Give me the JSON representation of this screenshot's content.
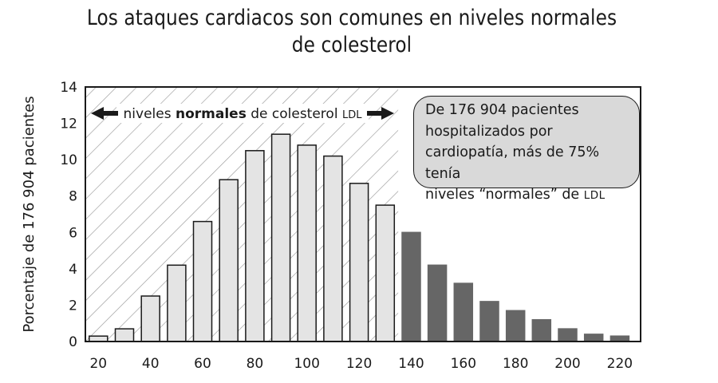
{
  "chart_data": {
    "type": "bar",
    "title": [
      "Los ataques cardiacos son comunes en niveles normales",
      "de colesterol"
    ],
    "ylabel": "Porcentaje de 176 904 pacientes",
    "xlabel": "",
    "ylim": [
      0,
      14
    ],
    "yticks": [
      0,
      2,
      4,
      6,
      8,
      10,
      12,
      14
    ],
    "xticks": [
      20,
      40,
      60,
      80,
      100,
      120,
      140,
      160,
      180,
      200,
      220
    ],
    "grid": false,
    "normal_range_label": {
      "prefix": "niveles ",
      "bold": "normales",
      "middle": " de colesterol ",
      "smallcaps": "LDL"
    },
    "normal_range_ldl": [
      15,
      135
    ],
    "callout": [
      "De 176 904 pacientes",
      "hospitalizados por",
      "cardiopatía, más de 75% tenía",
      "niveles “normales” de "
    ],
    "callout_smallcaps": "LDL",
    "colors": {
      "normal": "#e4e4e4",
      "high": "#666666",
      "outline": "#1a1a1a",
      "hatch": "#9a9a9a",
      "callout_bg": "#d9d9d9"
    },
    "series": [
      {
        "x": [
          20,
          30,
          40,
          50,
          60,
          70,
          80,
          90,
          100,
          110,
          120,
          130
        ],
        "values": [
          0.3,
          0.7,
          2.5,
          4.2,
          6.6,
          8.9,
          10.5,
          11.4,
          10.8,
          10.2,
          8.7,
          7.5
        ],
        "status": "normal"
      },
      {
        "x": [
          140,
          150,
          160,
          170,
          180,
          190,
          200,
          210,
          220
        ],
        "values": [
          6.0,
          4.2,
          3.2,
          2.2,
          1.7,
          1.2,
          0.7,
          0.4,
          0.3
        ],
        "status": "high"
      }
    ]
  }
}
